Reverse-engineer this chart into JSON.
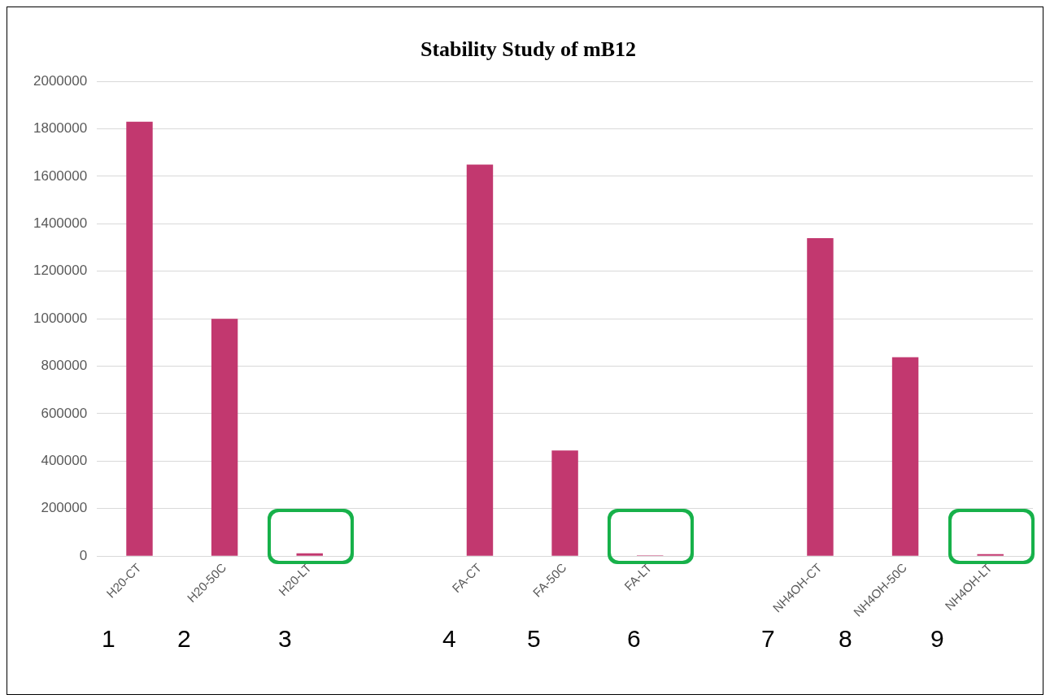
{
  "chart_data": {
    "type": "bar",
    "title": "Stability Study of mB12",
    "categories": [
      "H20-CT",
      "H20-50C",
      "H20-LT",
      null,
      "FA-CT",
      "FA-50C",
      "FA-LT",
      null,
      "NH4OH-CT",
      "NH4OH-50C",
      "NH4OH-LT"
    ],
    "values": [
      1830000,
      1000000,
      12000,
      null,
      1650000,
      445000,
      3000,
      null,
      1340000,
      838000,
      8000
    ],
    "color": "#c2386f",
    "ylim": [
      0,
      2000000
    ],
    "yticks": [
      0,
      200000,
      400000,
      600000,
      800000,
      1000000,
      1200000,
      1400000,
      1600000,
      1800000,
      2000000
    ],
    "grid": "y",
    "legend": false,
    "annotations": [
      "1",
      "2",
      "3",
      "4",
      "5",
      "6",
      "7",
      "8",
      "9"
    ]
  }
}
